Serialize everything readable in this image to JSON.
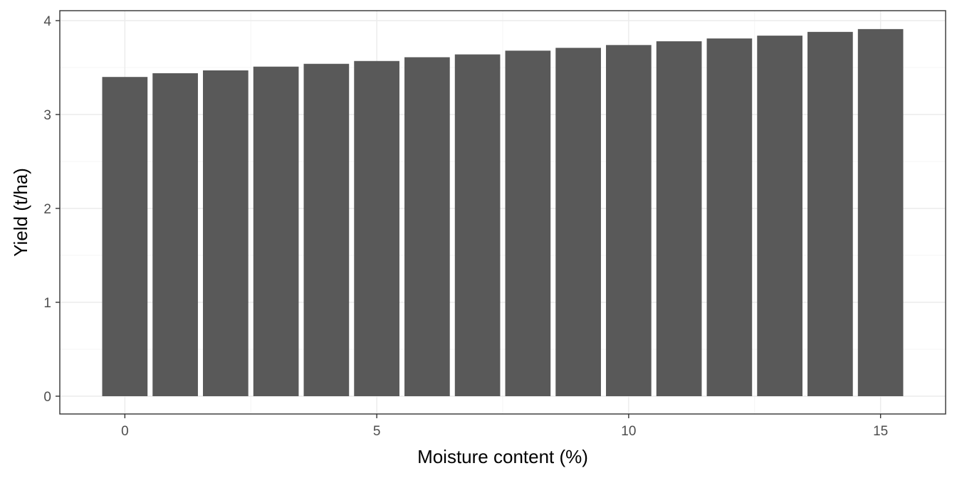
{
  "chart_data": {
    "type": "bar",
    "title": "",
    "xlabel": "Moisture content (%)",
    "ylabel": "Yield (t/ha)",
    "x": [
      0,
      1,
      2,
      3,
      4,
      5,
      6,
      7,
      8,
      9,
      10,
      11,
      12,
      13,
      14,
      15
    ],
    "values": [
      3.4,
      3.44,
      3.47,
      3.51,
      3.54,
      3.57,
      3.61,
      3.64,
      3.68,
      3.71,
      3.74,
      3.78,
      3.81,
      3.84,
      3.88,
      3.91
    ],
    "xlim": [
      -0.5,
      15.5
    ],
    "ylim": [
      0,
      4
    ],
    "xticks": [
      0,
      5,
      10,
      15
    ],
    "yticks": [
      0,
      1,
      2,
      3,
      4
    ],
    "grid": true,
    "legend": "none",
    "colors": {
      "bar": "#595959",
      "grid_major": "#ebebeb",
      "grid_minor": "#f5f5f5",
      "panel_border": "#333333"
    }
  }
}
